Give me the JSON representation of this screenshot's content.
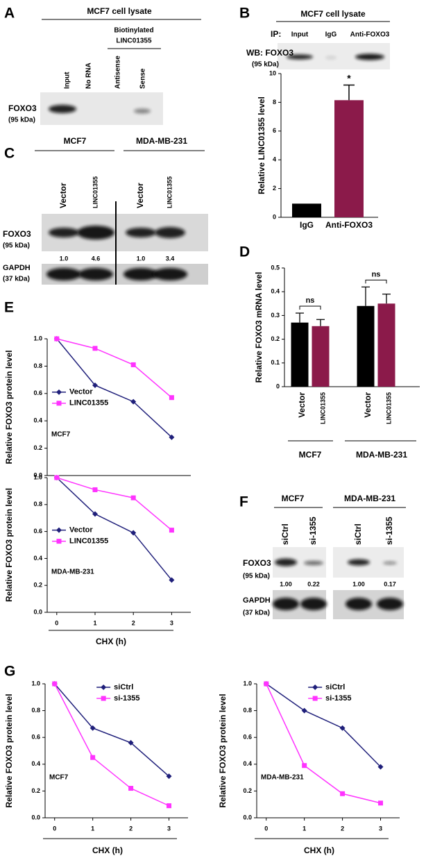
{
  "panel_labels": [
    "A",
    "B",
    "C",
    "D",
    "E",
    "F",
    "G"
  ],
  "blots": [
    {
      "title": "MCF7 cell lysate",
      "subtitle": [
        "Biotinylated",
        "LINC01355"
      ],
      "lanes": [
        "Input",
        "No RNA",
        "Antisense",
        "Sense"
      ],
      "protein": "FOXO3",
      "size": "(95 kDa)"
    },
    {
      "title": "MCF7 cell lysate",
      "ip": "IP:",
      "lanes": [
        "Input",
        "IgG",
        "Anti-FOXO3"
      ],
      "protein": "WB: FOXO3",
      "size": "(95 kDa)"
    },
    {
      "groups": [
        "MCF7",
        "MDA-MB-231"
      ],
      "lanes": [
        "Vector",
        "LINC01355",
        "Vector",
        "LINC01355"
      ],
      "rows": [
        {
          "protein": "FOXO3",
          "size": "(95 kDa)"
        },
        {
          "protein": "GAPDH",
          "size": "(37 kDa)"
        }
      ],
      "quantification": [
        "1.0",
        "4.6",
        "1.0",
        "3.4"
      ]
    },
    {
      "groups": [
        "MCF7",
        "MDA-MB-231"
      ],
      "lanes": [
        "siCtrl",
        "si-1355",
        "siCtrl",
        "si-1355"
      ],
      "rows": [
        {
          "protein": "FOXO3",
          "size": "(95 kDa)"
        },
        {
          "protein": "GAPDH",
          "size": "(37 kDa)"
        }
      ],
      "quantification": [
        "1.00",
        "0.22",
        "1.00",
        "0.17"
      ]
    }
  ],
  "chart_data": [
    {
      "type": "bar",
      "y_label": "Relative LINC01355 level",
      "categories": [
        "IgG",
        "Anti-FOXO3"
      ],
      "values": [
        0.95,
        8.15
      ],
      "errors": [
        null,
        1.05
      ],
      "colors": [
        "#000000",
        "#8b1a4a"
      ],
      "ylim": [
        0,
        10
      ],
      "yticks": [
        0,
        2,
        4,
        6,
        8,
        10
      ],
      "annotations": [
        "*"
      ]
    },
    {
      "type": "grouped_bar",
      "y_label": "Relative FOXO3 mRNA level",
      "groups": [
        "MCF7",
        "MDA-MB-231"
      ],
      "series": [
        {
          "name": "Vector",
          "color": "#000000",
          "values": [
            0.27,
            0.34
          ],
          "errors": [
            0.04,
            0.08
          ]
        },
        {
          "name": "LINC01355",
          "color": "#8b1a4a",
          "values": [
            0.255,
            0.35
          ],
          "errors": [
            0.028,
            0.04
          ]
        }
      ],
      "ylim": [
        0,
        0.5
      ],
      "yticks": [
        0,
        0.1,
        0.2,
        0.3,
        0.4,
        0.5
      ],
      "annotations": [
        "ns",
        "ns"
      ]
    },
    {
      "type": "line",
      "y_label": "Relative FOXO3 protein level",
      "annotation": "MCF7",
      "legend": "center left",
      "x": [
        0,
        1,
        2,
        3
      ],
      "xlim": [
        -0.25,
        3.5
      ],
      "ylim": [
        0,
        1
      ],
      "yticks": [
        {
          "value": 0,
          "label": "0.0"
        },
        {
          "value": 0.2,
          "label": "0.2"
        },
        {
          "value": 0.4,
          "label": "0.4"
        },
        {
          "value": 0.6,
          "label": "0.6"
        },
        {
          "value": 0.8,
          "label": "0.8"
        },
        {
          "value": 1,
          "label": "1.0"
        }
      ],
      "series": [
        {
          "name": "Vector",
          "color": "#1f1f7a",
          "marker": "diamond",
          "values": [
            1.0,
            0.66,
            0.54,
            0.28
          ]
        },
        {
          "name": "LINC01355",
          "color": "#ff33ff",
          "marker": "square",
          "values": [
            1.0,
            0.93,
            0.81,
            0.57
          ]
        }
      ]
    },
    {
      "type": "line",
      "y_label": "Relative FOXO3 protein level",
      "x_label": "CHX (h)",
      "annotation": "MDA-MB-231",
      "legend": "center left",
      "x": [
        0,
        1,
        2,
        3
      ],
      "xticks": [
        0,
        1,
        2,
        3
      ],
      "xlim": [
        -0.25,
        3.5
      ],
      "ylim": [
        0,
        1
      ],
      "yticks": [
        {
          "value": 0,
          "label": "0.0"
        },
        {
          "value": 0.2,
          "label": "0.2"
        },
        {
          "value": 0.4,
          "label": "0.4"
        },
        {
          "value": 0.6,
          "label": "0.6"
        },
        {
          "value": 0.8,
          "label": "0.8"
        },
        {
          "value": 1,
          "label": "1.0"
        }
      ],
      "series": [
        {
          "name": "Vector",
          "color": "#1f1f7a",
          "marker": "diamond",
          "values": [
            1.0,
            0.73,
            0.59,
            0.24
          ]
        },
        {
          "name": "LINC01355",
          "color": "#ff33ff",
          "marker": "square",
          "values": [
            1.0,
            0.91,
            0.85,
            0.61
          ]
        }
      ]
    },
    {
      "type": "line",
      "y_label": "Relative FOXO3 protein level",
      "x_label": "CHX (h)",
      "annotation": "MCF7",
      "legend": "upper center",
      "x": [
        0,
        1,
        2,
        3
      ],
      "xticks": [
        0,
        1,
        2,
        3
      ],
      "xlim": [
        -0.25,
        3.5
      ],
      "ylim": [
        0,
        1
      ],
      "yticks": [
        {
          "value": 0,
          "label": "0.0"
        },
        {
          "value": 0.2,
          "label": "0.2"
        },
        {
          "value": 0.4,
          "label": "0.4"
        },
        {
          "value": 0.6,
          "label": "0.6"
        },
        {
          "value": 0.8,
          "label": "0.8"
        },
        {
          "value": 1,
          "label": "1.0"
        }
      ],
      "series": [
        {
          "name": "siCtrl",
          "color": "#1f1f7a",
          "marker": "diamond",
          "values": [
            1.0,
            0.67,
            0.56,
            0.31
          ]
        },
        {
          "name": "si-1355",
          "color": "#ff33ff",
          "marker": "square",
          "values": [
            1.0,
            0.45,
            0.22,
            0.09
          ]
        }
      ]
    },
    {
      "type": "line",
      "y_label": "Relative FOXO3 protein level",
      "x_label": "CHX (h)",
      "annotation": "MDA-MB-231",
      "legend": "upper center",
      "x": [
        0,
        1,
        2,
        3
      ],
      "xticks": [
        0,
        1,
        2,
        3
      ],
      "xlim": [
        -0.25,
        3.5
      ],
      "ylim": [
        0,
        1
      ],
      "yticks": [
        {
          "value": 0,
          "label": "0.0"
        },
        {
          "value": 0.2,
          "label": "0.2"
        },
        {
          "value": 0.4,
          "label": "0.4"
        },
        {
          "value": 0.6,
          "label": "0.6"
        },
        {
          "value": 0.8,
          "label": "0.8"
        },
        {
          "value": 1,
          "label": "1.0"
        }
      ],
      "series": [
        {
          "name": "siCtrl",
          "color": "#1f1f7a",
          "marker": "diamond",
          "values": [
            1.0,
            0.8,
            0.67,
            0.38
          ]
        },
        {
          "name": "si-1355",
          "color": "#ff33ff",
          "marker": "square",
          "values": [
            1.0,
            0.39,
            0.18,
            0.11
          ]
        }
      ]
    }
  ]
}
